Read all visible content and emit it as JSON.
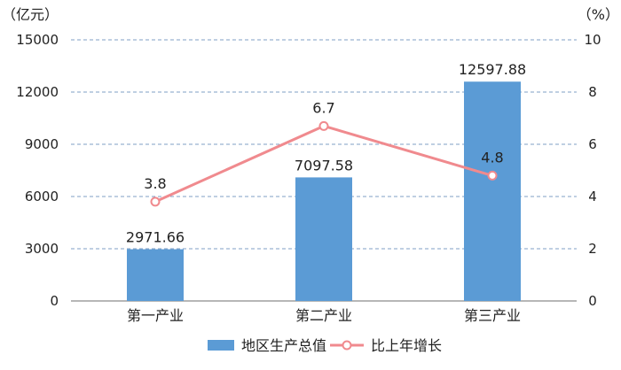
{
  "chart_data": {
    "type": "bar",
    "categories": [
      "第一产业",
      "第二产业",
      "第三产业"
    ],
    "series": [
      {
        "name": "地区生产总值",
        "type": "bar",
        "axis": "left",
        "values": [
          2971.66,
          7097.58,
          12597.88
        ],
        "labels": [
          "2971.66",
          "7097.58",
          "12597.88"
        ]
      },
      {
        "name": "比上年增长",
        "type": "line",
        "axis": "right",
        "values": [
          3.8,
          6.7,
          4.8
        ],
        "labels": [
          "3.8",
          "6.7",
          "4.8"
        ]
      }
    ],
    "y_left": {
      "unit": "（亿元）",
      "range": [
        0,
        15000
      ],
      "ticks": [
        "0",
        "3000",
        "6000",
        "9000",
        "12000",
        "15000"
      ]
    },
    "y_right": {
      "unit": "（%）",
      "range": [
        0,
        10
      ],
      "ticks": [
        "0",
        "2",
        "4",
        "6",
        "8",
        "10"
      ]
    },
    "grid": true,
    "legend": "bottom",
    "colors": {
      "bar": "#5b9bd5",
      "line": "#f08a8e",
      "grid": "#7f9fc4",
      "text": "#222222"
    }
  }
}
